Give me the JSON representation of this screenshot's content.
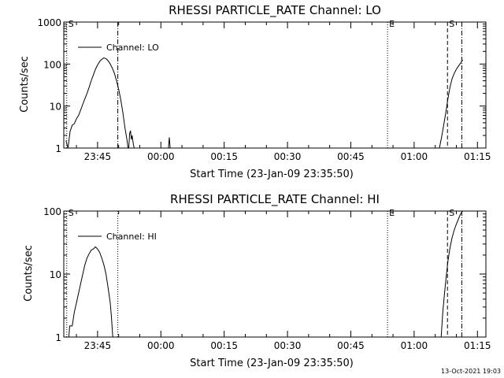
{
  "chart_data": [
    {
      "type": "line",
      "title": "RHESSI PARTICLE_RATE Channel: LO",
      "xlabel": "Start Time (23-Jan-09 23:35:50)",
      "ylabel": "Counts/sec",
      "yscale": "log",
      "ylim": [
        1,
        1000
      ],
      "xlim_minutes": [
        -23,
        77
      ],
      "x_ticks": [
        {
          "t": -15,
          "label": "23:45"
        },
        {
          "t": 0,
          "label": "00:00"
        },
        {
          "t": 15,
          "label": "00:15"
        },
        {
          "t": 30,
          "label": "00:30"
        },
        {
          "t": 45,
          "label": "00:45"
        },
        {
          "t": 60,
          "label": "01:00"
        },
        {
          "t": 75,
          "label": "01:15"
        }
      ],
      "y_ticks": [
        {
          "v": 1,
          "label": "1"
        },
        {
          "v": 10,
          "label": "10"
        },
        {
          "v": 100,
          "label": "100"
        },
        {
          "v": 1000,
          "label": "1000"
        }
      ],
      "series": [
        {
          "name": "Channel: LO",
          "segments": [
            [
              [
                -22.5,
                1.5
              ],
              [
                -22.0,
                1.0
              ],
              [
                -21.5,
                2.5
              ],
              [
                -21.0,
                3.5
              ],
              [
                -20.5,
                3.8
              ],
              [
                -20.0,
                5
              ],
              [
                -19.5,
                6
              ],
              [
                -19.0,
                8
              ],
              [
                -18.5,
                11
              ],
              [
                -18.0,
                15
              ],
              [
                -17.5,
                20
              ],
              [
                -17.0,
                28
              ],
              [
                -16.5,
                40
              ],
              [
                -16.0,
                55
              ],
              [
                -15.5,
                75
              ],
              [
                -15.0,
                95
              ],
              [
                -14.5,
                115
              ],
              [
                -14.0,
                130
              ],
              [
                -13.5,
                140
              ],
              [
                -13.0,
                135
              ],
              [
                -12.5,
                120
              ],
              [
                -12.0,
                100
              ],
              [
                -11.5,
                80
              ],
              [
                -11.0,
                60
              ],
              [
                -10.5,
                40
              ],
              [
                -10.0,
                25
              ],
              [
                -9.5,
                14
              ],
              [
                -9.0,
                7
              ],
              [
                -8.5,
                3
              ],
              [
                -8.0,
                1.5
              ],
              [
                -7.8,
                1.0
              ]
            ],
            [
              [
                -7.6,
                1.0
              ],
              [
                -7.4,
                2.2
              ],
              [
                -7.2,
                2.6
              ],
              [
                -7.0,
                1.6
              ],
              [
                -6.8,
                2.0
              ],
              [
                -6.5,
                1.2
              ],
              [
                -6.3,
                1.0
              ]
            ],
            [
              [
                1.8,
                1.0
              ],
              [
                2.0,
                1.8
              ],
              [
                2.2,
                1.0
              ]
            ],
            [
              [
                66.0,
                1.0
              ],
              [
                66.5,
                1.8
              ],
              [
                67.0,
                3.5
              ],
              [
                67.5,
                7
              ],
              [
                68.0,
                15
              ],
              [
                68.5,
                28
              ],
              [
                69.0,
                45
              ],
              [
                69.5,
                60
              ],
              [
                70.0,
                75
              ],
              [
                70.5,
                90
              ],
              [
                71.0,
                105
              ],
              [
                71.5,
                125
              ]
            ]
          ]
        }
      ],
      "markers": [
        {
          "t": -22.3,
          "style": "dotted",
          "label": "S"
        },
        {
          "t": -10.2,
          "style": "dashdot",
          "label": ""
        },
        {
          "t": 53.7,
          "style": "dotted",
          "label": "E"
        },
        {
          "t": 67.9,
          "style": "dashed",
          "label": "S"
        },
        {
          "t": 71.3,
          "style": "dashdot",
          "label": ""
        }
      ],
      "legend": "upper-left"
    },
    {
      "type": "line",
      "title": "RHESSI PARTICLE_RATE Channel: HI",
      "xlabel": "Start Time (23-Jan-09 23:35:50)",
      "ylabel": "Counts/sec",
      "yscale": "log",
      "ylim": [
        1,
        100
      ],
      "xlim_minutes": [
        -23,
        77
      ],
      "x_ticks": [
        {
          "t": -15,
          "label": "23:45"
        },
        {
          "t": 0,
          "label": "00:00"
        },
        {
          "t": 15,
          "label": "00:15"
        },
        {
          "t": 30,
          "label": "00:30"
        },
        {
          "t": 45,
          "label": "00:45"
        },
        {
          "t": 60,
          "label": "01:00"
        },
        {
          "t": 75,
          "label": "01:15"
        }
      ],
      "y_ticks": [
        {
          "v": 1,
          "label": "1"
        },
        {
          "v": 10,
          "label": "10"
        },
        {
          "v": 100,
          "label": "100"
        }
      ],
      "series": [
        {
          "name": "Channel: HI",
          "segments": [
            [
              [
                -21.8,
                1.0
              ],
              [
                -21.6,
                1.5
              ],
              [
                -21.0,
                1.5
              ],
              [
                -20.5,
                2.5
              ],
              [
                -20.0,
                3.5
              ],
              [
                -19.5,
                5
              ],
              [
                -19.0,
                7
              ],
              [
                -18.5,
                10
              ],
              [
                -18.0,
                14
              ],
              [
                -17.5,
                18
              ],
              [
                -17.0,
                21
              ],
              [
                -16.5,
                24
              ],
              [
                -16.0,
                25
              ],
              [
                -15.5,
                27
              ],
              [
                -15.0,
                25
              ],
              [
                -14.5,
                22
              ],
              [
                -14.0,
                18
              ],
              [
                -13.5,
                14
              ],
              [
                -13.0,
                10
              ],
              [
                -12.5,
                6
              ],
              [
                -12.0,
                3.5
              ],
              [
                -11.7,
                2.0
              ],
              [
                -11.4,
                1.0
              ]
            ],
            [
              [
                66.4,
                1.0
              ],
              [
                66.8,
                2.5
              ],
              [
                67.2,
                5
              ],
              [
                67.6,
                9
              ],
              [
                68.0,
                16
              ],
              [
                68.5,
                26
              ],
              [
                69.0,
                38
              ],
              [
                69.5,
                50
              ],
              [
                70.0,
                62
              ],
              [
                70.5,
                75
              ],
              [
                71.0,
                90
              ],
              [
                71.5,
                100
              ]
            ]
          ]
        }
      ],
      "markers": [
        {
          "t": -22.3,
          "style": "dotted",
          "label": "S"
        },
        {
          "t": -10.2,
          "style": "dotted",
          "label": ""
        },
        {
          "t": 53.7,
          "style": "dotted",
          "label": "E"
        },
        {
          "t": 67.9,
          "style": "dashed",
          "label": "S"
        },
        {
          "t": 71.3,
          "style": "dashdot",
          "label": ""
        }
      ],
      "legend": "upper-left"
    }
  ],
  "footer": {
    "timestamp": "13-Oct-2021 19:03"
  }
}
